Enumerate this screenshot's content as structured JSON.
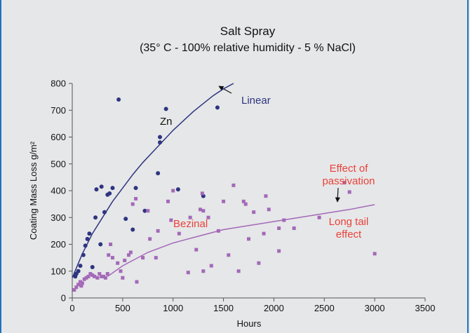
{
  "chart_data": {
    "type": "scatter",
    "title": "Salt Spray",
    "subtitle": "(35° C - 100% relative humidity - 5 % NaCl)",
    "x_label": "Hours",
    "y_label": "Coating Mass Loss g/m²",
    "xlim": [
      0,
      3500
    ],
    "ylim": [
      0,
      800
    ],
    "xticks": [
      0,
      500,
      1000,
      1500,
      2000,
      2500,
      3000,
      3500
    ],
    "yticks": [
      0,
      100,
      200,
      300,
      400,
      500,
      600,
      700,
      800
    ],
    "grid": false,
    "series": [
      {
        "name": "Zn",
        "color": "#2e3580",
        "marker": "circle",
        "x": [
          30,
          40,
          60,
          80,
          110,
          130,
          150,
          170,
          200,
          230,
          240,
          280,
          290,
          320,
          350,
          370,
          400,
          460,
          530,
          600,
          630,
          720,
          850,
          870,
          870,
          930,
          1050,
          1300,
          1440
        ],
        "values": [
          80,
          90,
          100,
          120,
          160,
          195,
          220,
          240,
          115,
          300,
          405,
          200,
          415,
          320,
          385,
          390,
          410,
          740,
          295,
          255,
          410,
          325,
          465,
          580,
          600,
          705,
          405,
          380,
          710
        ]
      },
      {
        "name": "Bezinal",
        "color": "#a369b8",
        "marker": "square",
        "x": [
          20,
          40,
          60,
          80,
          90,
          100,
          120,
          140,
          160,
          180,
          200,
          220,
          250,
          270,
          290,
          310,
          330,
          350,
          360,
          380,
          400,
          450,
          480,
          500,
          520,
          560,
          580,
          600,
          630,
          640,
          700,
          750,
          770,
          830,
          850,
          950,
          980,
          1000,
          1060,
          1150,
          1170,
          1230,
          1270,
          1290,
          1300,
          1300,
          1350,
          1380,
          1450,
          1500,
          1550,
          1600,
          1650,
          1700,
          1720,
          1750,
          1800,
          1850,
          1900,
          1920,
          1950,
          2050,
          2050,
          2100,
          2200,
          2450,
          2700,
          2750,
          3000
        ],
        "values": [
          30,
          40,
          50,
          60,
          45,
          55,
          70,
          75,
          80,
          90,
          85,
          80,
          75,
          90,
          80,
          80,
          75,
          90,
          160,
          200,
          150,
          130,
          100,
          75,
          140,
          160,
          170,
          350,
          370,
          60,
          150,
          325,
          220,
          150,
          250,
          360,
          290,
          400,
          240,
          95,
          300,
          180,
          330,
          390,
          325,
          100,
          300,
          120,
          250,
          360,
          160,
          420,
          100,
          360,
          350,
          220,
          320,
          130,
          240,
          380,
          330,
          260,
          175,
          290,
          260,
          300,
          430,
          395,
          165
        ]
      }
    ],
    "curves": [
      {
        "name": "Linear",
        "color": "#2e3580",
        "x": [
          0,
          50,
          100,
          200,
          300,
          400,
          500,
          600,
          700,
          800,
          900,
          1000,
          1100,
          1200,
          1300,
          1400,
          1500,
          1600
        ],
        "values": [
          75,
          120,
          165,
          240,
          300,
          360,
          410,
          460,
          505,
          545,
          585,
          625,
          660,
          695,
          725,
          755,
          780,
          800
        ]
      },
      {
        "color": "#a369b8",
        "x": [
          350,
          500,
          750,
          1000,
          1250,
          1500,
          1750,
          2000,
          2250,
          2500,
          2750,
          3000
        ],
        "values": [
          80,
          120,
          170,
          205,
          230,
          255,
          270,
          285,
          300,
          315,
          330,
          348
        ]
      }
    ],
    "annotations": [
      {
        "lines": [
          "Effect of",
          "passivation"
        ]
      },
      {
        "lines": [
          "Long tail",
          "effect"
        ]
      }
    ]
  }
}
